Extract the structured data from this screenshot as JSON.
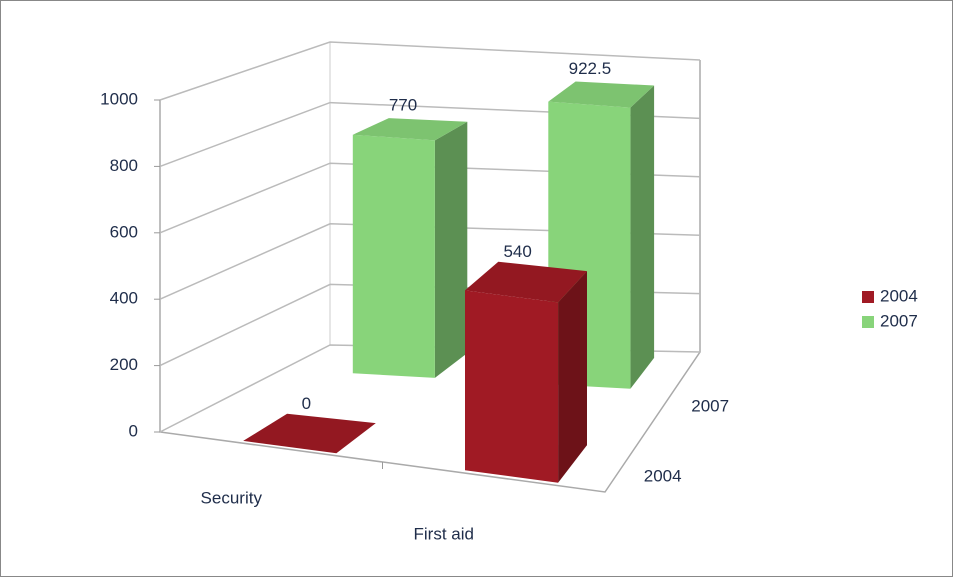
{
  "chart_data": {
    "type": "bar3d",
    "categories": [
      "Security",
      "First aid"
    ],
    "series": [
      {
        "name": "2004",
        "color": "#a01a24",
        "values": [
          0,
          540
        ]
      },
      {
        "name": "2007",
        "color": "#88d47a",
        "values": [
          770,
          922.5
        ]
      }
    ],
    "ylim": [
      0,
      1000
    ],
    "yticks": [
      0,
      200,
      400,
      600,
      800,
      1000
    ],
    "grid": true,
    "legend": "right"
  }
}
